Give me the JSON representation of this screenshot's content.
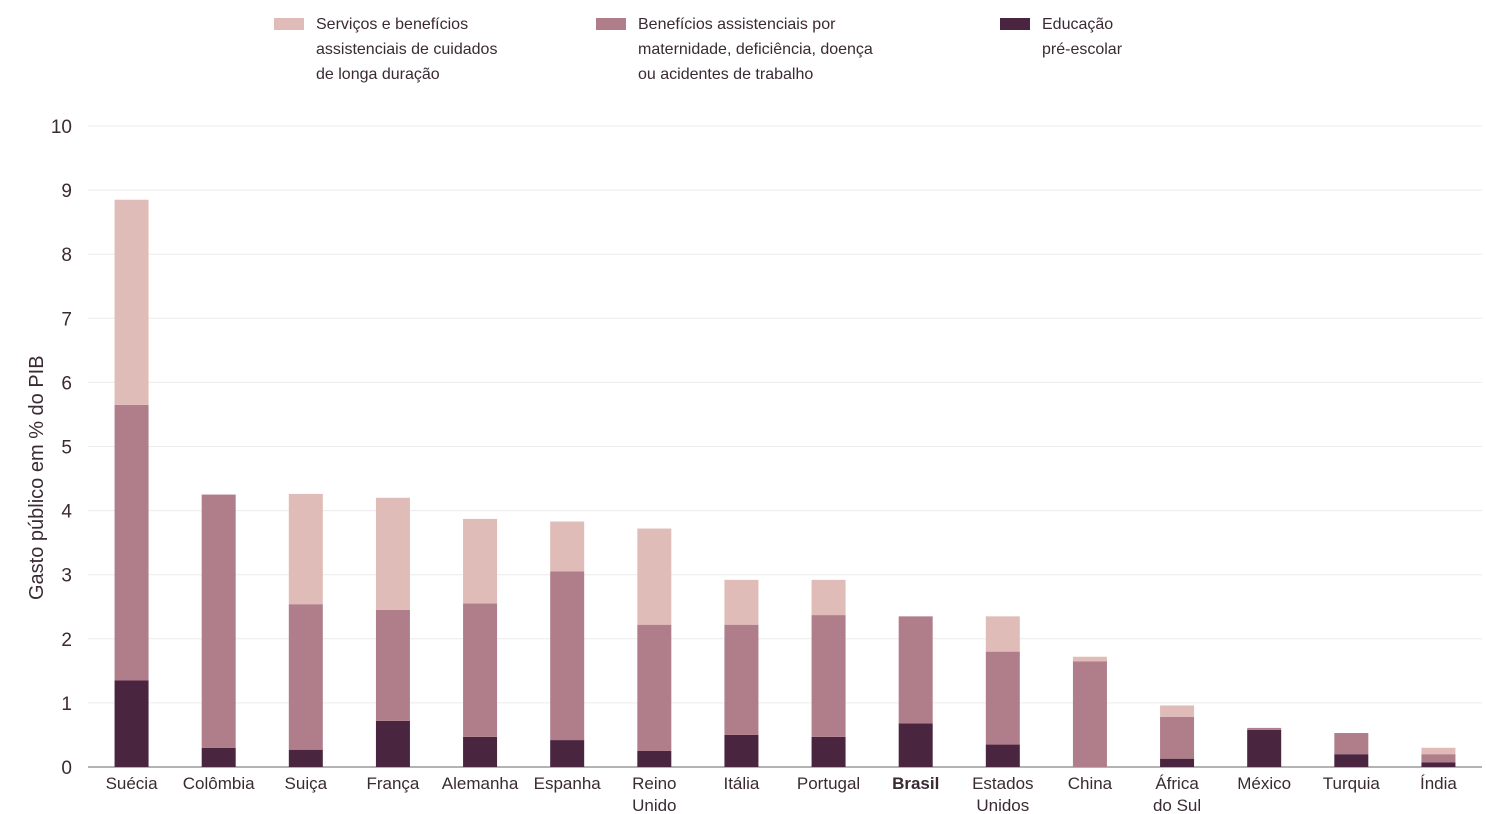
{
  "chart_data": {
    "type": "bar",
    "stacked": true,
    "ylabel": "Gasto público em % do PIB",
    "xlabel": "",
    "ylim": [
      0,
      10
    ],
    "yticks": [
      "0",
      "1",
      "2",
      "3",
      "4",
      "5",
      "6",
      "7",
      "8",
      "9",
      "10"
    ],
    "grid": true,
    "legend_position": "top",
    "categories": [
      "Suécia",
      "Colômbia",
      "Suiça",
      "França",
      "Alemanha",
      "Espanha",
      "Reino\nUnido",
      "Itália",
      "Portugal",
      "Brasil",
      "Estados\nUnidos",
      "China",
      "África\ndo Sul",
      "México",
      "Turquia",
      "Índia"
    ],
    "highlight_category": "Brasil",
    "series": [
      {
        "name": "Educação\npré-escolar",
        "color": "#4a2540",
        "values": [
          1.35,
          0.3,
          0.27,
          0.72,
          0.47,
          0.42,
          0.25,
          0.5,
          0.47,
          0.68,
          0.35,
          0.0,
          0.13,
          0.58,
          0.2,
          0.07
        ]
      },
      {
        "name": "Benefícios assistenciais por\nmaternidade, deficiência, doença\nou acidentes de trabalho",
        "color": "#b07d8b",
        "values": [
          4.3,
          3.95,
          2.27,
          1.73,
          2.08,
          2.63,
          1.97,
          1.72,
          1.9,
          1.67,
          1.45,
          1.65,
          0.65,
          0.03,
          0.33,
          0.13
        ]
      },
      {
        "name": "Serviços e benefícios\nassistenciais de cuidados\nde longa duração",
        "color": "#dfbcb7",
        "values": [
          3.2,
          0.0,
          1.72,
          1.75,
          1.32,
          0.78,
          1.5,
          0.7,
          0.55,
          0.0,
          0.55,
          0.07,
          0.18,
          0.0,
          0.0,
          0.1
        ]
      }
    ]
  }
}
